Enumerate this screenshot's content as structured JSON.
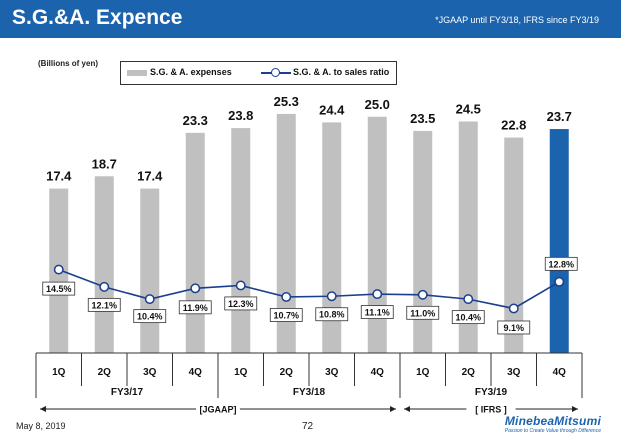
{
  "header": {
    "title": "S.G.&A. Expence",
    "note": "*JGAAP until FY3/18, IFRS since FY3/19"
  },
  "unit_label": "(Billions of yen)",
  "legend": {
    "bar_label": "S.G. & A. expenses",
    "line_label": "S.G. & A. to sales ratio"
  },
  "colors": {
    "header_bg": "#1c63ad",
    "bar": "#c0c0c0",
    "highlight_bar": "#1c63ad",
    "line": "#1b3f8e"
  },
  "chart_data": {
    "type": "bar",
    "title": "S.G.&A. Expence",
    "ylabel": "Billions of yen",
    "categories": [
      "1Q",
      "2Q",
      "3Q",
      "4Q",
      "1Q",
      "2Q",
      "3Q",
      "4Q",
      "1Q",
      "2Q",
      "3Q",
      "4Q"
    ],
    "series": [
      {
        "name": "S.G. & A. expenses",
        "type": "bar",
        "values": [
          17.4,
          18.7,
          17.4,
          23.3,
          23.8,
          25.3,
          24.4,
          25.0,
          23.5,
          24.5,
          22.8,
          23.7
        ],
        "value_labels": [
          "17.4",
          "18.7",
          "17.4",
          "23.3",
          "23.8",
          "25.3",
          "24.4",
          "25.0",
          "23.5",
          "24.5",
          "22.8",
          "23.7"
        ]
      },
      {
        "name": "S.G. & A. to sales ratio",
        "type": "line",
        "unit": "%",
        "values": [
          14.5,
          12.1,
          10.4,
          11.9,
          12.3,
          10.7,
          10.8,
          11.1,
          11.0,
          10.4,
          9.1,
          12.8
        ],
        "value_labels": [
          "14.5%",
          "12.1%",
          "10.4%",
          "11.9%",
          "12.3%",
          "10.7%",
          "10.8%",
          "11.1%",
          "11.0%",
          "10.4%",
          "9.1%",
          "12.8%"
        ]
      }
    ],
    "highlight_index": 11,
    "ylim_bars": [
      0,
      26
    ],
    "ylim_ratio": [
      0,
      28
    ],
    "fiscal_years": [
      {
        "label": "FY3/17",
        "start": 0,
        "end": 3
      },
      {
        "label": "FY3/18",
        "start": 4,
        "end": 7
      },
      {
        "label": "FY3/19",
        "start": 8,
        "end": 11
      }
    ],
    "standards": [
      {
        "label": "[JGAAP]",
        "start": 0,
        "end": 7
      },
      {
        "label": "[ IFRS ]",
        "start": 8,
        "end": 11
      }
    ]
  },
  "footer": {
    "date": "May 8, 2019",
    "page": "72",
    "logo_name": "MinebeaMitsumi",
    "logo_tagline": "Passion to Create Value through Difference"
  }
}
